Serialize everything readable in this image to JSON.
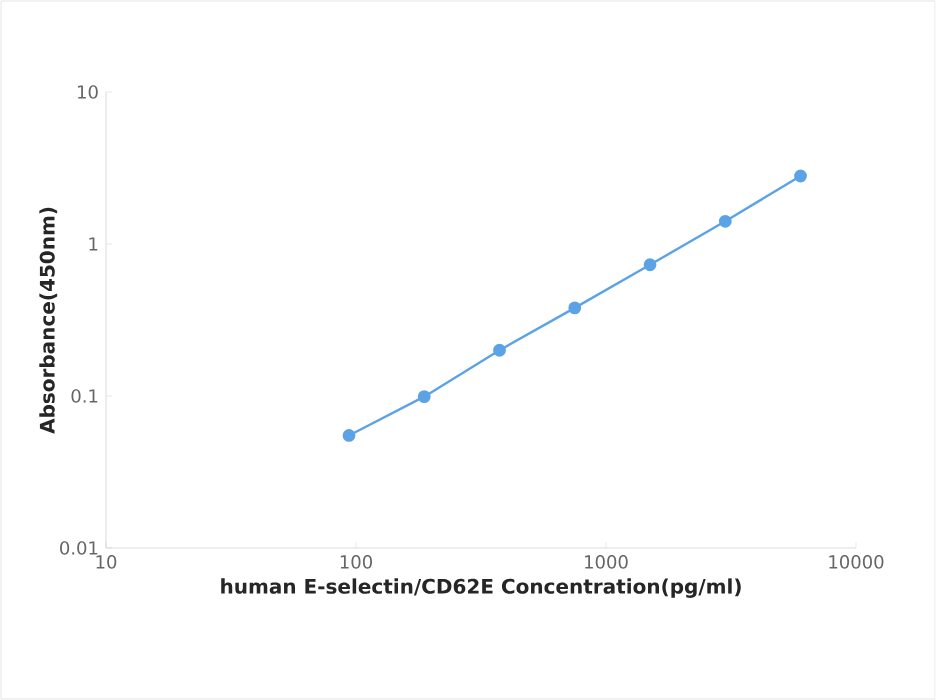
{
  "chart_data": {
    "type": "line",
    "xlabel": "human E-selectin/CD62E Concentration(pg/ml)",
    "ylabel": "Absorbance(450nm)",
    "x": [
      93.75,
      187.5,
      375,
      750,
      1500,
      3000,
      6000
    ],
    "series": [
      {
        "color": "#5ba3e6",
        "values": [
          0.055,
          0.099,
          0.2,
          0.38,
          0.73,
          1.41,
          2.8
        ]
      }
    ],
    "log": "xy",
    "xlim": [
      10,
      10000
    ],
    "ylim": [
      0.01,
      10
    ],
    "xticks": [
      10,
      100,
      1000,
      10000
    ],
    "yticks": [
      0.01,
      0.1,
      1,
      10
    ],
    "marker": "circle",
    "line_style": "solid"
  }
}
